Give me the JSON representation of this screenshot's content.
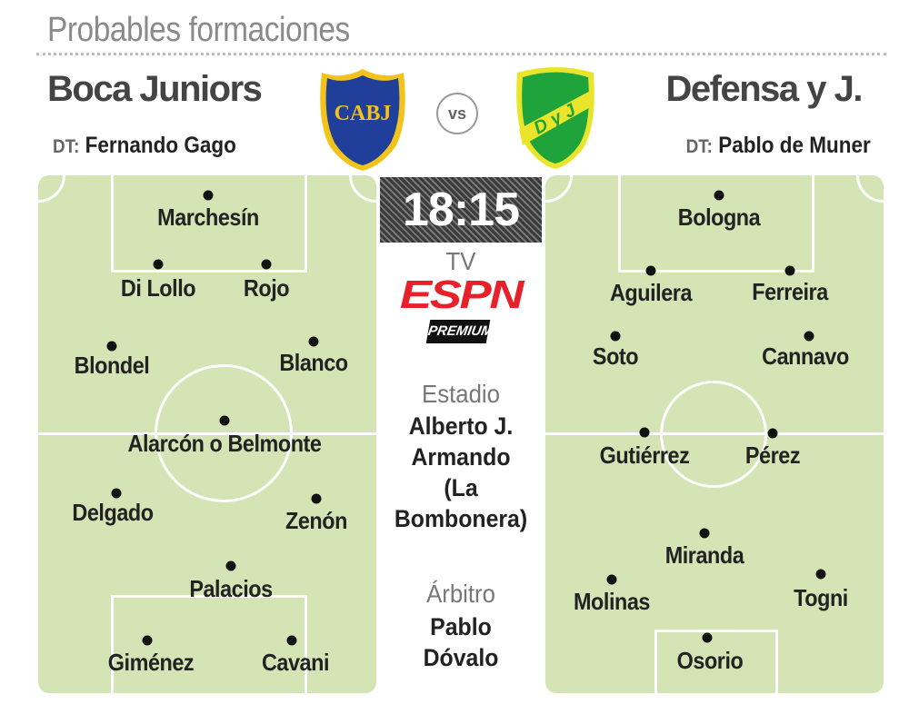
{
  "title": "Probables formaciones",
  "home": {
    "name": "Boca Juniors",
    "dt_label": "DT:",
    "dt": "Fernando Gago",
    "crest_text": "CABJ",
    "colors": {
      "primary": "#1f3f9a",
      "secondary": "#f2c31b"
    },
    "players": [
      "Marchesín",
      "Di Lollo",
      "Rojo",
      "Blondel",
      "Blanco",
      "Alarcón o Belmonte",
      "Delgado",
      "Zenón",
      "Palacios",
      "Giménez",
      "Cavani"
    ]
  },
  "away": {
    "name": "Defensa y J.",
    "dt_label": "DT:",
    "dt": "Pablo de Muner",
    "crest_text": "DyJ",
    "colors": {
      "primary": "#1ea43a",
      "secondary": "#e8e52a"
    },
    "players": [
      "Bologna",
      "Aguilera",
      "Ferreira",
      "Soto",
      "Cannavo",
      "Gutiérrez",
      "Pérez",
      "Miranda",
      "Molinas",
      "Togni",
      "Osorio"
    ]
  },
  "vs": "vs",
  "match": {
    "time": "18:15",
    "tv_label": "TV",
    "tv_channel": "ESPN",
    "tv_tier": "PREMIUM",
    "stadium_label": "Estadio",
    "stadium": [
      "Alberto J.",
      "Armando",
      "(La",
      "Bombonera)"
    ],
    "referee_label": "Árbitro",
    "referee": [
      "Pablo",
      "Dóvalo"
    ]
  },
  "colors": {
    "pitch": "#d4e4b4",
    "espn": "#e8202a"
  }
}
